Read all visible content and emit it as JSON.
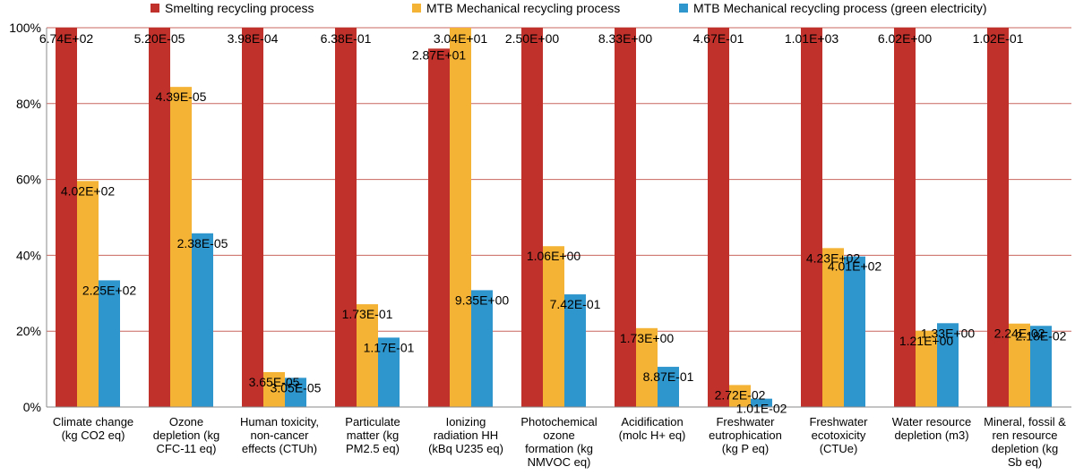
{
  "chart_data": {
    "type": "bar",
    "ylim": [
      0,
      100
    ],
    "yticks": [
      0,
      20,
      40,
      60,
      80,
      100
    ],
    "ytick_labels": [
      "0%",
      "20%",
      "40%",
      "60%",
      "80%",
      "100%"
    ],
    "categories": [
      [
        "Climate change",
        "(kg CO2 eq)"
      ],
      [
        "Ozone",
        "depletion (kg",
        "CFC-11 eq)"
      ],
      [
        "Human toxicity,",
        "non-cancer",
        "effects (CTUh)"
      ],
      [
        "Particulate",
        "matter (kg",
        "PM2.5 eq)"
      ],
      [
        "Ionizing",
        "radiation HH",
        "(kBq U235 eq)"
      ],
      [
        "Photochemical",
        "ozone",
        "formation (kg",
        "NMVOC eq)"
      ],
      [
        "Acidification",
        "(molc H+ eq)"
      ],
      [
        "Freshwater",
        "eutrophication",
        "(kg P eq)"
      ],
      [
        "Freshwater",
        "ecotoxicity",
        "(CTUe)"
      ],
      [
        "Water resource",
        "depletion (m3)"
      ],
      [
        "Mineral, fossil &",
        "ren resource",
        "depletion (kg",
        "Sb eq)"
      ]
    ],
    "series": [
      {
        "name": "Smelting recycling process",
        "color": "#c0312b",
        "values": [
          100,
          100,
          100,
          100,
          94.5,
          100,
          100,
          100,
          100,
          100,
          100
        ],
        "labels": [
          "6.74E+02",
          "5.20E-05",
          "3.98E-04",
          "6.38E-01",
          "2.87E+01",
          "2.50E+00",
          "8.33E+00",
          "4.67E-01",
          "1.01E+03",
          "6.02E+00",
          "1.02E-01"
        ]
      },
      {
        "name": "MTB Mechanical recycling process",
        "color": "#f5b335",
        "values": [
          59.6,
          84.4,
          9.2,
          27.1,
          100,
          42.4,
          20.8,
          5.8,
          41.9,
          20.1,
          22.0
        ],
        "labels": [
          "4.02E+02",
          "4.39E-05",
          "3.65E-05",
          "1.73E-01",
          "3.04E+01",
          "1.06E+00",
          "1.73E+00",
          "2.72E-02",
          "4.23E+02",
          "1.21E+00",
          "2.24E-02"
        ]
      },
      {
        "name": "MTB Mechanical recycling process (green electricity)",
        "color": "#2e95cd",
        "values": [
          33.4,
          45.8,
          7.7,
          18.3,
          30.8,
          29.7,
          10.6,
          2.2,
          39.7,
          22.1,
          21.4
        ],
        "labels": [
          "2.25E+02",
          "2.38E-05",
          "3.05E-05",
          "1.17E-01",
          "9.35E+00",
          "7.42E-01",
          "8.87E-01",
          "1.01E-02",
          "4.01E+02",
          "1.33E+00",
          "2.18E-02"
        ]
      }
    ]
  }
}
